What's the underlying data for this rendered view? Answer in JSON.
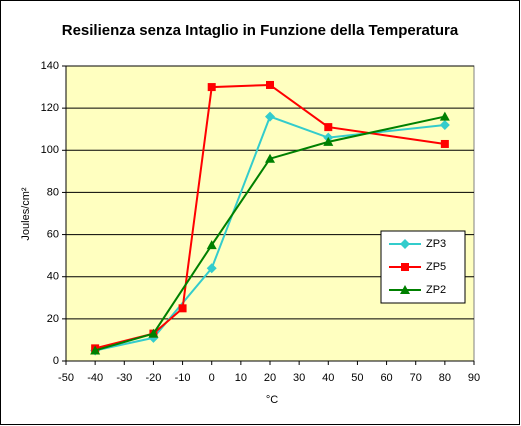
{
  "chart_data": {
    "type": "line",
    "title": "Resilienza senza Intaglio in Funzione della Temperatura",
    "x_label": "°C",
    "y_label": "Joules/cm²",
    "xlim": [
      -50,
      90
    ],
    "xticks": [
      -50,
      -40,
      -30,
      -20,
      -10,
      0,
      10,
      20,
      30,
      40,
      50,
      60,
      70,
      80,
      90
    ],
    "ylim": [
      0,
      140
    ],
    "yticks": [
      0,
      20,
      40,
      60,
      80,
      100,
      120,
      140
    ],
    "grid": true,
    "legend": "right",
    "background": "#ffffc0",
    "series": [
      {
        "name": "ZP3",
        "color": "#33cccc",
        "marker": "diamond",
        "x": [
          -40,
          -20,
          0,
          20,
          40,
          80
        ],
        "values": [
          5,
          11,
          44,
          116,
          106,
          112
        ]
      },
      {
        "name": "ZP5",
        "color": "#ff0000",
        "marker": "square",
        "x": [
          -40,
          -20,
          -10,
          0,
          20,
          40,
          80
        ],
        "values": [
          6,
          13,
          25,
          130,
          131,
          111,
          103
        ]
      },
      {
        "name": "ZP2",
        "color": "#008000",
        "marker": "triangle",
        "x": [
          -40,
          -20,
          0,
          20,
          40,
          80
        ],
        "values": [
          5,
          13,
          55,
          96,
          104,
          116
        ]
      }
    ]
  }
}
